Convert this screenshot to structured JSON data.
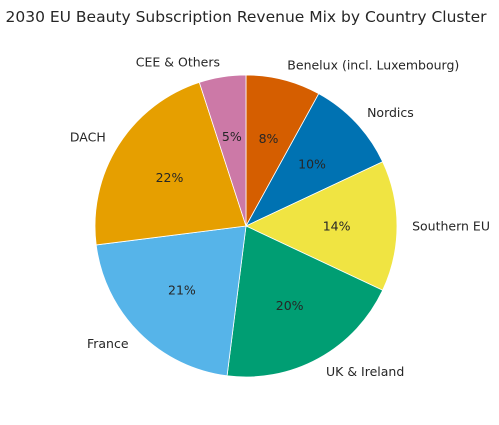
{
  "chart_data": {
    "type": "pie",
    "title": "2030 EU Beauty Subscription Revenue Mix by Country Cluster",
    "start_angle_deg": 90,
    "direction": "clockwise",
    "legend": "none",
    "slices": [
      {
        "label": "Benelux (incl. Luxembourg)",
        "value": 8,
        "pct_label": "8%",
        "color": "#D55E00"
      },
      {
        "label": "Nordics",
        "value": 10,
        "pct_label": "10%",
        "color": "#0072B2"
      },
      {
        "label": "Southern EU",
        "value": 14,
        "pct_label": "14%",
        "color": "#F0E442"
      },
      {
        "label": "UK & Ireland",
        "value": 20,
        "pct_label": "20%",
        "color": "#009E73"
      },
      {
        "label": "France",
        "value": 21,
        "pct_label": "21%",
        "color": "#56B4E9"
      },
      {
        "label": "DACH",
        "value": 22,
        "pct_label": "22%",
        "color": "#E69F00"
      },
      {
        "label": "CEE & Others",
        "value": 5,
        "pct_label": "5%",
        "color": "#CC79A7"
      }
    ]
  }
}
